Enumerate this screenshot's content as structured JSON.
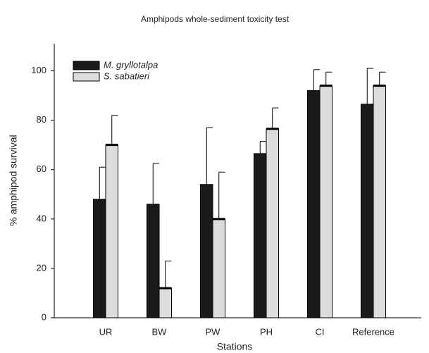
{
  "chart_data": {
    "type": "bar",
    "title": "Amphipods whole-sediment toxicity test",
    "x_label": "Stations",
    "y_label": "% amphipod survival",
    "categories": [
      "UR",
      "BW",
      "PW",
      "PH",
      "CI",
      "Reference"
    ],
    "series": [
      {
        "name": "M. gryllotalpa",
        "color": "#1a1a1a",
        "values": [
          48,
          46,
          54,
          66.5,
          92,
          86.5
        ],
        "errors": [
          13,
          16.5,
          23,
          5,
          8.5,
          14.5
        ]
      },
      {
        "name": "S. sabatieri",
        "color": "#dcdcdc",
        "values": [
          70,
          12,
          40,
          76.5,
          94,
          94
        ],
        "errors": [
          12,
          11,
          19,
          8.5,
          5.5,
          5.5
        ]
      }
    ],
    "ylim": [
      0,
      111
    ],
    "yticks": [
      0,
      20,
      40,
      60,
      80,
      100
    ],
    "grid": false,
    "legend": "upper left"
  }
}
